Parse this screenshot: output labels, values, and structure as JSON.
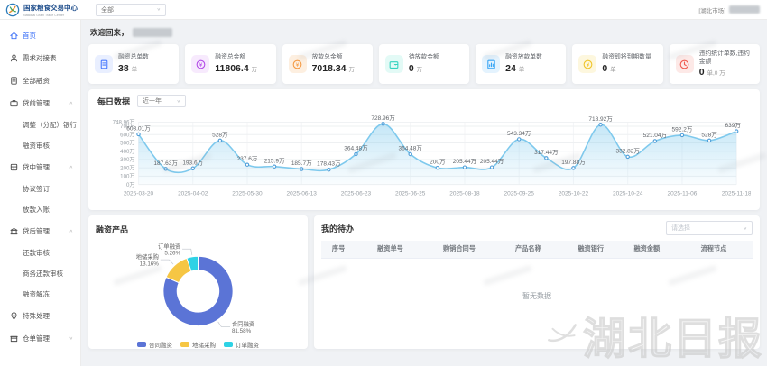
{
  "icons": {
    "chevron_down": "∨",
    "chevron_up": "∧"
  },
  "header": {
    "logo_title": "国家粮食交易中心",
    "logo_subtitle": "National Grain Trade Center",
    "scope_select": {
      "value": "全部"
    },
    "user_market_tag": "[湖北市场]"
  },
  "sidebar": {
    "items": [
      {
        "label": "首页",
        "icon": "home-icon",
        "type": "item",
        "active": true
      },
      {
        "label": "需求对接表",
        "icon": "user-icon",
        "type": "item"
      },
      {
        "label": "全部融资",
        "icon": "document-icon",
        "type": "item"
      },
      {
        "label": "贷前管理",
        "icon": "briefcase-icon",
        "type": "group"
      },
      {
        "label": "调整（分配）银行",
        "type": "sub"
      },
      {
        "label": "融资审核",
        "type": "sub"
      },
      {
        "label": "贷中管理",
        "icon": "layers-icon",
        "type": "group"
      },
      {
        "label": "协议签订",
        "type": "sub"
      },
      {
        "label": "放款入账",
        "type": "sub"
      },
      {
        "label": "贷后管理",
        "icon": "bank-icon",
        "type": "group"
      },
      {
        "label": "还款审核",
        "type": "sub"
      },
      {
        "label": "商务还款审核",
        "type": "sub"
      },
      {
        "label": "融资解冻",
        "type": "sub"
      },
      {
        "label": "特殊处理",
        "icon": "pin-icon",
        "type": "item"
      },
      {
        "label": "仓单管理",
        "icon": "box-icon",
        "type": "group"
      }
    ]
  },
  "main": {
    "welcome_prefix": "欢迎回来，",
    "stats": [
      {
        "label": "融资总单数",
        "value": "38",
        "unit": "单",
        "icon": "document-icon",
        "color": "#4D7CFE",
        "bg": "#E9EFFF"
      },
      {
        "label": "融资总金额",
        "value": "11806.4",
        "unit": "万",
        "icon": "money-icon",
        "color": "#B44CE8",
        "bg": "#F7EAFD"
      },
      {
        "label": "放款总金额",
        "value": "7018.34",
        "unit": "万",
        "icon": "coin-icon",
        "color": "#F59B45",
        "bg": "#FDEFE0"
      },
      {
        "label": "待放款金额",
        "value": "0",
        "unit": "万",
        "icon": "wallet-icon",
        "color": "#35D3C0",
        "bg": "#E3FAF6"
      },
      {
        "label": "融资放款单数",
        "value": "24",
        "unit": "单",
        "icon": "chart-icon",
        "color": "#35A4F5",
        "bg": "#E4F3FE"
      },
      {
        "label": "融资即将到期数量",
        "value": "0",
        "unit": "单",
        "icon": "coin-icon",
        "color": "#F0C52A",
        "bg": "#FDF7DE"
      },
      {
        "label": "违约统计单数,违约金额",
        "value": "0",
        "unit": "单,0 万",
        "icon": "clock-icon",
        "color": "#F05B50",
        "bg": "#FDE9E7"
      }
    ],
    "todo": {
      "title": "我的待办",
      "filter_placeholder": "请选择",
      "columns": [
        "序号",
        "融资单号",
        "购销合同号",
        "产品名称",
        "融资银行",
        "融资金额",
        "流程节点"
      ],
      "empty_text": "暂无数据"
    }
  },
  "chart_data": [
    {
      "type": "line",
      "title": "每日数据",
      "range_label": "近一年",
      "x_tick_labels": [
        "2025-03-20",
        "2025-04-02",
        "2025-05-30",
        "2025-06-13",
        "2025-06-23",
        "2025-06-25",
        "2025-08-18",
        "2025-09-25",
        "2025-10-22",
        "2025-10-24",
        "2025-11-06",
        "2025-11-18"
      ],
      "values": [
        603.01,
        187.63,
        193.6,
        528,
        237.6,
        215.9,
        185.7,
        178.43,
        364.48,
        728.96,
        364.48,
        200,
        205.44,
        205.44,
        543.34,
        317.44,
        197.88,
        718.92,
        332.82,
        521.04,
        592.2,
        528,
        639
      ],
      "point_labels": [
        "603.01万",
        "187.63万",
        "193.6万",
        "528万",
        "237.6万",
        "215.9万",
        "185.7万",
        "178.43万",
        "364.48万",
        "728.96万",
        "364.48万",
        "200万",
        "205.44万",
        "205.44万",
        "543.34万",
        "317.44万",
        "197.88万",
        "718.92万",
        "332.82万",
        "521.04万",
        "592.2万",
        "528万",
        "639万"
      ],
      "unit": "万",
      "ylim": [
        0,
        748.96
      ],
      "y_ticks": [
        0,
        100,
        200,
        300,
        400,
        500,
        600,
        700,
        748.96
      ],
      "y_tick_labels": [
        "0万",
        "100万",
        "200万",
        "300万",
        "400万",
        "500万",
        "600万",
        "700万",
        "748.96万"
      ],
      "line_color": "#7EC9ED",
      "point_color": "#4F9ED9",
      "grid": true,
      "legend_position": "none"
    },
    {
      "type": "pie",
      "title": "融资产品",
      "slices": [
        {
          "name": "合同融资",
          "pct": 81.58,
          "label": "81.58%",
          "color": "#5B74D6"
        },
        {
          "name": "地储采购",
          "pct": 13.16,
          "label": "13.16%",
          "color": "#F6C644"
        },
        {
          "name": "订单融资",
          "pct": 5.26,
          "label": "5.26%",
          "color": "#2ED2E5"
        }
      ],
      "legend": [
        "合同融资",
        "地储采购",
        "订单融资"
      ],
      "legend_position": "bottom"
    }
  ],
  "watermark": {
    "text": "湖北日报"
  }
}
